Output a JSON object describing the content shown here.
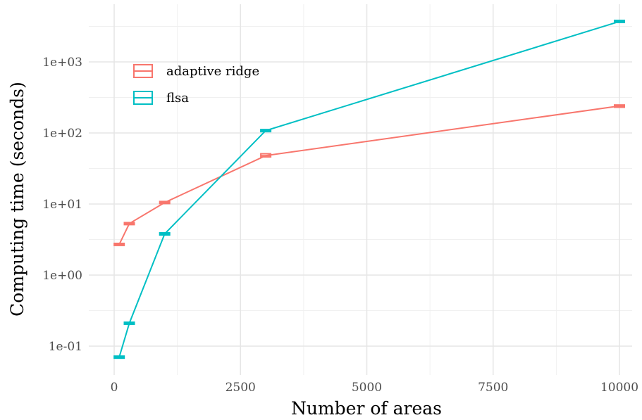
{
  "chart_data": {
    "type": "line",
    "xlabel": "Number of areas",
    "ylabel": "Computing time (seconds)",
    "x_scale": "linear",
    "y_scale": "log10",
    "xlim": [
      0,
      10000
    ],
    "ylim": [
      0.045,
      5500
    ],
    "x_ticks": [
      0,
      2500,
      5000,
      7500,
      10000
    ],
    "x_tick_labels": [
      "0",
      "2500",
      "5000",
      "7500",
      "10000"
    ],
    "y_ticks": [
      0.1,
      1,
      10,
      100,
      1000
    ],
    "y_tick_labels": [
      "1e-01",
      "1e+00",
      "1e+01",
      "1e+02",
      "1e+03"
    ],
    "grid": true,
    "legend_position": "top-left",
    "series": [
      {
        "name": "adaptive ridge",
        "color": "#F8766D",
        "x": [
          100,
          300,
          1000,
          3000,
          10000
        ],
        "y": [
          2.7,
          5.3,
          10.5,
          48,
          240
        ],
        "y_spread": [
          [
            2.7,
            2.7
          ],
          [
            5.3,
            5.3
          ],
          [
            10.5,
            10.5
          ],
          [
            46,
            51
          ],
          [
            230,
            248
          ]
        ]
      },
      {
        "name": "flsa",
        "color": "#00BFC4",
        "x": [
          100,
          300,
          1000,
          3000,
          10000
        ],
        "y": [
          0.07,
          0.21,
          3.8,
          108,
          3700
        ],
        "y_spread": [
          [
            0.068,
            0.072
          ],
          [
            0.21,
            0.21
          ],
          [
            3.8,
            3.8
          ],
          [
            106,
            110
          ],
          [
            3650,
            3780
          ]
        ]
      }
    ]
  }
}
